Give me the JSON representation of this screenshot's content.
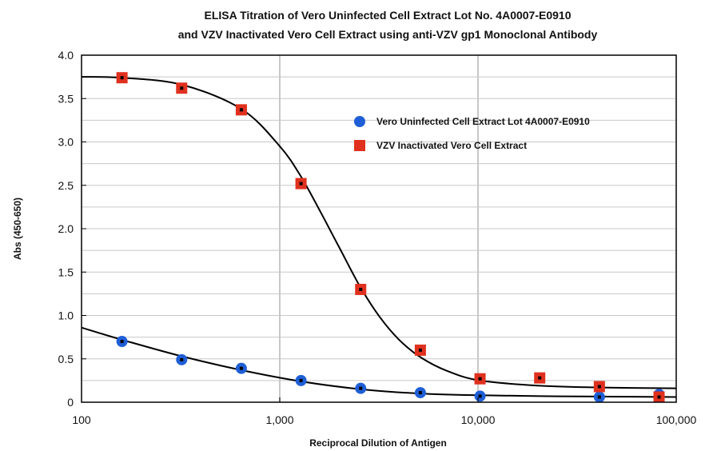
{
  "chart_data": {
    "type": "scatter",
    "title_line1": "ELISA Titration of Vero Uninfected Cell Extract Lot No. 4A0007-E0910",
    "title_line2": "and VZV Inactivated Vero Cell Extract using anti-VZV gp1 Monoclonal Antibody",
    "xlabel": "Reciprocal Dilution of Antigen",
    "ylabel": "Abs (450-650)",
    "x_scale": "log",
    "xlim": [
      100,
      100000
    ],
    "ylim": [
      0,
      4.0
    ],
    "x_ticks": [
      100,
      1000,
      10000,
      100000
    ],
    "x_tick_labels": [
      "100",
      "1,000",
      "10,000",
      "100,000"
    ],
    "y_ticks": [
      0,
      0.5,
      1.0,
      1.5,
      2.0,
      2.5,
      3.0,
      3.5,
      4.0
    ],
    "y_tick_labels": [
      "0",
      "0.5",
      "1.0",
      "1.5",
      "2.0",
      "2.5",
      "3.0",
      "3.5",
      "4.0"
    ],
    "grid": {
      "vertical_major": true,
      "horizontal": true
    },
    "legend_position": "upper-right",
    "series": [
      {
        "name": "Vero Uninfected Cell Extract Lot 4A0007-E0910",
        "marker": "circle",
        "color": "#1f5fd6",
        "x": [
          160,
          320,
          640,
          1280,
          2560,
          5120,
          10240,
          40960,
          81920
        ],
        "y": [
          0.7,
          0.49,
          0.39,
          0.25,
          0.16,
          0.11,
          0.07,
          0.06,
          0.09
        ],
        "fit_curve": [
          [
            100,
            0.86
          ],
          [
            160,
            0.72
          ],
          [
            320,
            0.53
          ],
          [
            640,
            0.37
          ],
          [
            1280,
            0.24
          ],
          [
            2560,
            0.15
          ],
          [
            5120,
            0.1
          ],
          [
            10240,
            0.08
          ],
          [
            20480,
            0.07
          ],
          [
            40960,
            0.065
          ],
          [
            100000,
            0.06
          ]
        ]
      },
      {
        "name": "VZV Inactivated Vero Cell Extract",
        "marker": "square",
        "color": "#e0301e",
        "x": [
          160,
          320,
          640,
          1280,
          2560,
          5120,
          10240,
          20480,
          40960,
          81920
        ],
        "y": [
          3.74,
          3.62,
          3.37,
          2.52,
          1.3,
          0.6,
          0.27,
          0.28,
          0.18,
          0.06
        ],
        "fit_curve": [
          [
            100,
            3.75
          ],
          [
            160,
            3.74
          ],
          [
            320,
            3.66
          ],
          [
            640,
            3.38
          ],
          [
            1000,
            2.95
          ],
          [
            1280,
            2.6
          ],
          [
            1600,
            2.2
          ],
          [
            2000,
            1.78
          ],
          [
            2560,
            1.32
          ],
          [
            3200,
            0.98
          ],
          [
            4000,
            0.72
          ],
          [
            5120,
            0.52
          ],
          [
            7000,
            0.36
          ],
          [
            10240,
            0.25
          ],
          [
            20480,
            0.19
          ],
          [
            40960,
            0.17
          ],
          [
            100000,
            0.16
          ]
        ]
      }
    ]
  }
}
